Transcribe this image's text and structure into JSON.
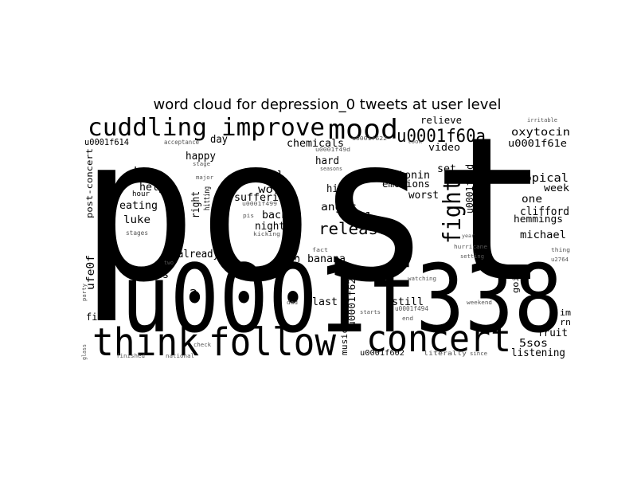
{
  "title": "word cloud for depression_0 tweets at user level",
  "words": {
    "post": "post",
    "u0001f338": "u0001f338",
    "think": "think",
    "follow": "follow",
    "concert": "concert",
    "cuddling": "cuddling",
    "improve": "improve",
    "mood": "mood",
    "u0001f60a": "u0001f60a",
    "fight": "fight",
    "u0001f62d": "u0001f62d",
    "u0001f629": "u0001f629",
    "releases": "releases",
    "oxytocin": "oxytocin",
    "u0001f61e": "u0001f61e",
    "tropical": "tropical",
    "week": "week",
    "one": "one",
    "clifford": "clifford",
    "hemmings": "hemmings",
    "michael": "michael",
    "u0001f614": "u0001f614",
    "chemicals": "chemicals",
    "day": "day",
    "happy": "happy",
    "bc": "bc",
    "help": "help",
    "eating": "eating",
    "luke": "luke",
    "post_concert": "post-concert",
    "hour": "hour",
    "stages": "stages",
    "hitting": "hitting",
    "right": "right",
    "denial": "denial",
    "work": "work",
    "suffering": "suffering",
    "back": "back",
    "night": "night",
    "hard": "hard",
    "hit": "hit",
    "anger": "anger",
    "real": "real",
    "serotonin": "serotonin",
    "emotions": "emotions",
    "worst": "worst",
    "set": "set",
    "relieve": "relieve",
    "video": "video",
    "already": "already",
    "banana": "banana",
    "three": "3",
    "ufe0f": "ufe0f",
    "miss": "miss",
    "two": "2",
    "first": "first",
    "last": "last",
    "still": "still",
    "music": "music",
    "fruit": "fruit",
    "fivesos": "5sos",
    "listening": "listening",
    "going": "going",
    "im": "im",
    "rn": "rn",
    "acceptance": "acceptance",
    "stage": "stage",
    "major": "major",
    "u0001f499": "u0001f499",
    "pis": "pis",
    "kicking": "kicking",
    "fact": "fact",
    "hurricane": "hurricane",
    "setting": "setting",
    "watching": "watching",
    "weekend": "weekend",
    "starts": "starts",
    "end": "end",
    "u0001f494": "u0001f494",
    "u0001f602": "u0001f602",
    "literally": "literally",
    "since": "since",
    "check": "check",
    "finished": "finished",
    "national": "national",
    "glass": "glass",
    "party": "party",
    "two_word": "two",
    "dad": "dad",
    "irritable": "irritable",
    "thing": "thing",
    "u0001f622": "u0001f622",
    "took": "took",
    "seasons": "seasons",
    "u0001f49d": "u0001f49d",
    "year": "year",
    "u2764": "u2764"
  }
}
